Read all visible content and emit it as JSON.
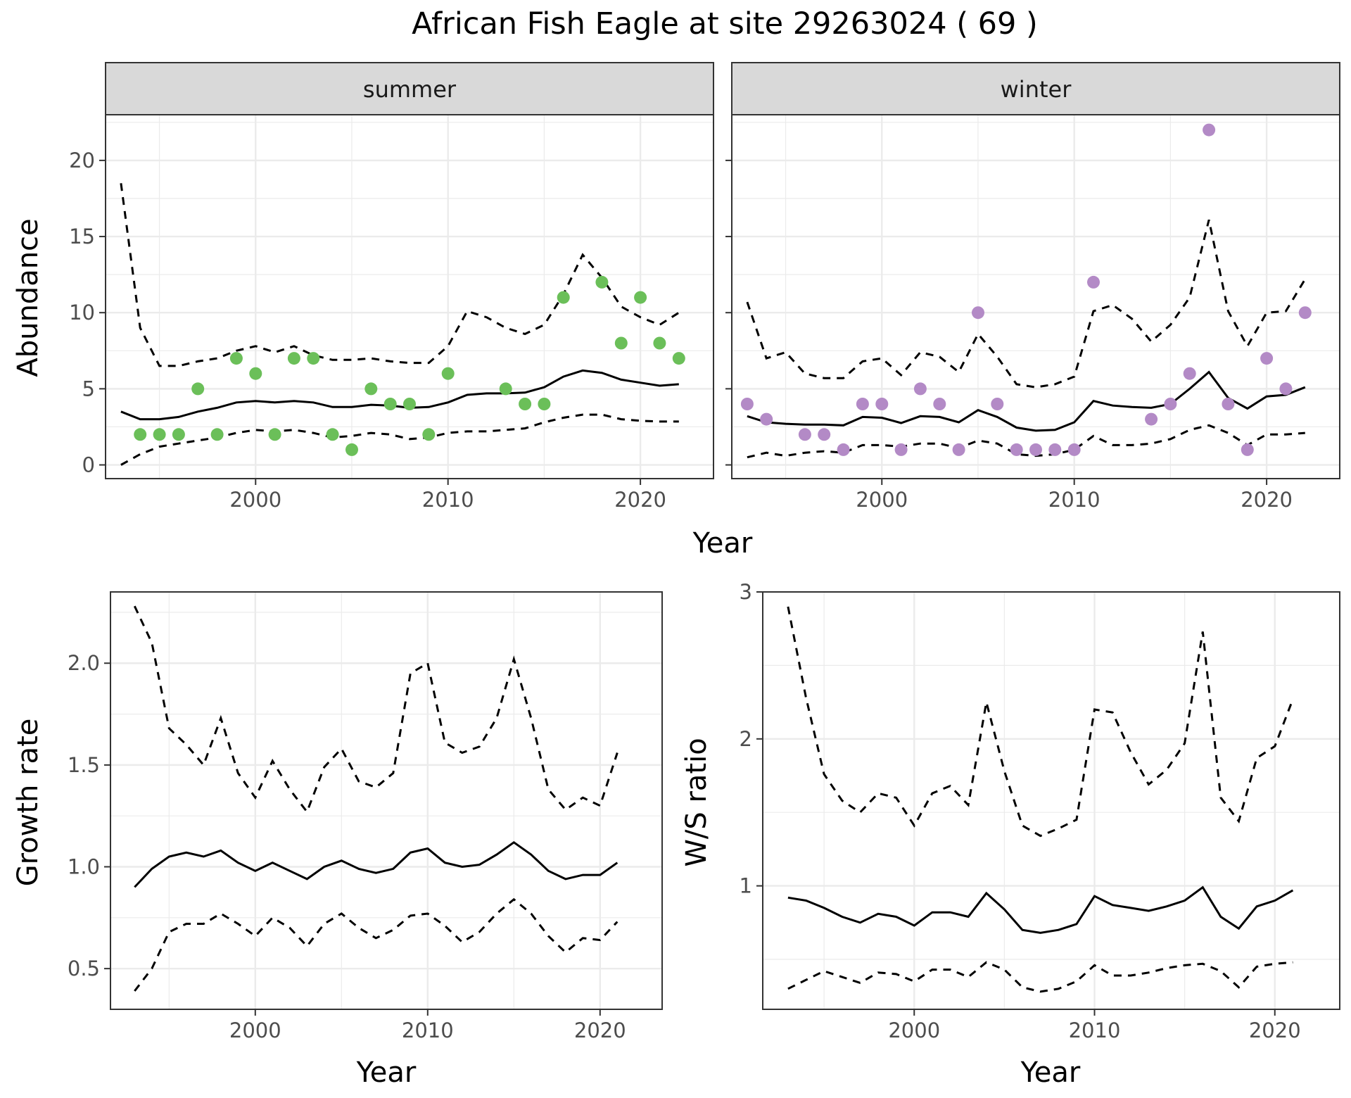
{
  "title": "African Fish Eagle at site 29263024 ( 69 )",
  "colors": {
    "summer_points": "#6BBF59",
    "winter_points": "#B38AC6",
    "line": "#000000",
    "strip_fill": "#D9D9D9",
    "grid": "#EBEBEB"
  },
  "chart_data": [
    {
      "type": "scatter",
      "facet": "summer",
      "xlabel": "Year",
      "ylabel": "Abundance",
      "xlim": [
        1992.2,
        2023.8
      ],
      "ylim": [
        -0.9,
        23
      ],
      "xticks": [
        2000,
        2010,
        2020
      ],
      "yticks": [
        0,
        5,
        10,
        15,
        20
      ],
      "grid": true,
      "points": {
        "x": [
          1994,
          1995,
          1996,
          1997,
          1998,
          1999,
          2000,
          2001,
          2002,
          2003,
          2004,
          2005,
          2006,
          2007,
          2008,
          2009,
          2010,
          2013,
          2014,
          2015,
          2016,
          2018,
          2019,
          2020,
          2021,
          2022
        ],
        "y": [
          2,
          2,
          2,
          5,
          2,
          7,
          6,
          2,
          7,
          7,
          2,
          1,
          5,
          4,
          4,
          2,
          6,
          5,
          4,
          4,
          11,
          12,
          8,
          11,
          8,
          7
        ]
      },
      "lines": {
        "x": [
          1993,
          1994,
          1995,
          1996,
          1997,
          1998,
          1999,
          2000,
          2001,
          2002,
          2003,
          2004,
          2005,
          2006,
          2007,
          2008,
          2009,
          2010,
          2011,
          2012,
          2013,
          2014,
          2015,
          2016,
          2017,
          2018,
          2019,
          2020,
          2021,
          2022
        ],
        "mean": [
          3.5,
          3.0,
          3.0,
          3.15,
          3.5,
          3.75,
          4.1,
          4.2,
          4.1,
          4.2,
          4.1,
          3.8,
          3.8,
          3.95,
          3.9,
          3.75,
          3.8,
          4.1,
          4.6,
          4.7,
          4.7,
          4.75,
          5.1,
          5.8,
          6.2,
          6.05,
          5.6,
          5.4,
          5.2,
          5.3
        ],
        "upper": [
          18.5,
          9.0,
          6.5,
          6.5,
          6.8,
          7.0,
          7.5,
          7.8,
          7.4,
          7.8,
          7.2,
          6.9,
          6.9,
          7.0,
          6.8,
          6.7,
          6.7,
          7.8,
          10.1,
          9.7,
          9.0,
          8.6,
          9.2,
          11.2,
          13.8,
          12.3,
          10.4,
          9.7,
          9.2,
          10.0
        ],
        "lower": [
          0.0,
          0.7,
          1.2,
          1.4,
          1.6,
          1.8,
          2.1,
          2.3,
          2.2,
          2.3,
          2.1,
          1.8,
          1.9,
          2.1,
          2.0,
          1.7,
          1.8,
          2.1,
          2.2,
          2.2,
          2.3,
          2.4,
          2.8,
          3.1,
          3.3,
          3.3,
          3.0,
          2.9,
          2.85,
          2.85
        ]
      }
    },
    {
      "type": "scatter",
      "facet": "winter",
      "xlabel": "Year",
      "ylabel": "Abundance",
      "xlim": [
        1992.2,
        2023.8
      ],
      "ylim": [
        -0.9,
        23
      ],
      "xticks": [
        2000,
        2010,
        2020
      ],
      "yticks": [
        0,
        5,
        10,
        15,
        20
      ],
      "grid": true,
      "points": {
        "x": [
          1993,
          1994,
          1996,
          1997,
          1998,
          1999,
          2000,
          2001,
          2002,
          2003,
          2004,
          2005,
          2006,
          2007,
          2008,
          2009,
          2010,
          2011,
          2014,
          2015,
          2016,
          2017,
          2018,
          2019,
          2020,
          2021,
          2022
        ],
        "y": [
          4,
          3,
          2,
          2,
          1,
          4,
          4,
          1,
          5,
          4,
          1,
          10,
          4,
          1,
          1,
          1,
          1,
          12,
          3,
          4,
          6,
          22,
          4,
          1,
          7,
          5,
          10
        ]
      },
      "lines": {
        "x": [
          1993,
          1994,
          1995,
          1996,
          1997,
          1998,
          1999,
          2000,
          2001,
          2002,
          2003,
          2004,
          2005,
          2006,
          2007,
          2008,
          2009,
          2010,
          2011,
          2012,
          2013,
          2014,
          2015,
          2016,
          2017,
          2018,
          2019,
          2020,
          2021,
          2022
        ],
        "mean": [
          3.2,
          2.8,
          2.7,
          2.65,
          2.65,
          2.6,
          3.15,
          3.1,
          2.75,
          3.2,
          3.15,
          2.8,
          3.6,
          3.15,
          2.45,
          2.25,
          2.3,
          2.8,
          4.2,
          3.9,
          3.8,
          3.75,
          4.0,
          5.0,
          6.1,
          4.4,
          3.7,
          4.5,
          4.6,
          5.1
        ],
        "upper": [
          10.7,
          7.0,
          7.4,
          6.0,
          5.7,
          5.7,
          6.8,
          7.0,
          5.9,
          7.4,
          7.1,
          6.1,
          8.6,
          7.1,
          5.3,
          5.1,
          5.3,
          5.8,
          10.1,
          10.5,
          9.6,
          8.1,
          9.2,
          11.0,
          16.1,
          10.1,
          7.8,
          10.0,
          10.1,
          12.2
        ],
        "lower": [
          0.5,
          0.8,
          0.6,
          0.8,
          0.9,
          0.8,
          1.3,
          1.3,
          1.2,
          1.4,
          1.4,
          1.1,
          1.6,
          1.4,
          0.7,
          0.6,
          0.7,
          1.0,
          1.9,
          1.3,
          1.3,
          1.4,
          1.7,
          2.3,
          2.6,
          2.1,
          1.3,
          2.0,
          2.0,
          2.1
        ]
      }
    },
    {
      "type": "line",
      "xlabel": "Year",
      "ylabel": "Growth rate",
      "xlim": [
        1991.6,
        2023.6
      ],
      "ylim": [
        0.3,
        2.35
      ],
      "xticks": [
        2000,
        2010,
        2020
      ],
      "yticks": [
        0.5,
        1.0,
        1.5,
        2.0
      ],
      "ytick_labels": [
        "0.5",
        "1.0",
        "1.5",
        "2.0"
      ],
      "grid": true,
      "lines": {
        "x": [
          1993,
          1994,
          1995,
          1996,
          1997,
          1998,
          1999,
          2000,
          2001,
          2002,
          2003,
          2004,
          2005,
          2006,
          2007,
          2008,
          2009,
          2010,
          2011,
          2012,
          2013,
          2014,
          2015,
          2016,
          2017,
          2018,
          2019,
          2020,
          2021
        ],
        "mean": [
          0.9,
          0.99,
          1.05,
          1.07,
          1.05,
          1.08,
          1.02,
          0.98,
          1.02,
          0.98,
          0.94,
          1.0,
          1.03,
          0.99,
          0.97,
          0.99,
          1.07,
          1.09,
          1.02,
          1.0,
          1.01,
          1.06,
          1.12,
          1.06,
          0.98,
          0.94,
          0.96,
          0.96,
          1.02
        ],
        "upper": [
          2.28,
          2.1,
          1.68,
          1.6,
          1.5,
          1.73,
          1.46,
          1.34,
          1.52,
          1.38,
          1.27,
          1.49,
          1.58,
          1.42,
          1.39,
          1.46,
          1.95,
          2.0,
          1.61,
          1.56,
          1.59,
          1.73,
          2.02,
          1.73,
          1.38,
          1.28,
          1.34,
          1.3,
          1.56
        ],
        "lower": [
          0.39,
          0.5,
          0.68,
          0.72,
          0.72,
          0.77,
          0.72,
          0.66,
          0.75,
          0.7,
          0.61,
          0.72,
          0.77,
          0.7,
          0.65,
          0.69,
          0.76,
          0.77,
          0.71,
          0.63,
          0.68,
          0.77,
          0.84,
          0.77,
          0.66,
          0.58,
          0.65,
          0.64,
          0.73
        ]
      }
    },
    {
      "type": "line",
      "xlabel": "Year",
      "ylabel": "W/S ratio",
      "xlim": [
        1991.6,
        2023.6
      ],
      "ylim": [
        0.16,
        3.0
      ],
      "xticks": [
        2000,
        2010,
        2020
      ],
      "yticks": [
        1,
        2,
        3
      ],
      "ytick_labels": [
        "1",
        "2",
        "3"
      ],
      "grid": true,
      "lines": {
        "x": [
          1993,
          1994,
          1995,
          1996,
          1997,
          1998,
          1999,
          2000,
          2001,
          2002,
          2003,
          2004,
          2005,
          2006,
          2007,
          2008,
          2009,
          2010,
          2011,
          2012,
          2013,
          2014,
          2015,
          2016,
          2017,
          2018,
          2019,
          2020,
          2021
        ],
        "mean": [
          0.92,
          0.9,
          0.85,
          0.79,
          0.75,
          0.81,
          0.79,
          0.73,
          0.82,
          0.82,
          0.79,
          0.95,
          0.84,
          0.7,
          0.68,
          0.7,
          0.74,
          0.93,
          0.87,
          0.85,
          0.83,
          0.86,
          0.9,
          0.99,
          0.79,
          0.71,
          0.86,
          0.9,
          0.97
        ],
        "upper": [
          2.9,
          2.28,
          1.76,
          1.58,
          1.5,
          1.63,
          1.6,
          1.41,
          1.63,
          1.68,
          1.55,
          2.25,
          1.78,
          1.41,
          1.34,
          1.39,
          1.45,
          2.2,
          2.18,
          1.91,
          1.69,
          1.79,
          1.97,
          2.73,
          1.6,
          1.44,
          1.87,
          1.95,
          2.27
        ],
        "lower": [
          0.3,
          0.36,
          0.42,
          0.38,
          0.34,
          0.41,
          0.4,
          0.35,
          0.43,
          0.43,
          0.38,
          0.48,
          0.43,
          0.31,
          0.28,
          0.3,
          0.35,
          0.46,
          0.39,
          0.39,
          0.41,
          0.44,
          0.46,
          0.47,
          0.42,
          0.31,
          0.45,
          0.47,
          0.48
        ]
      }
    }
  ]
}
